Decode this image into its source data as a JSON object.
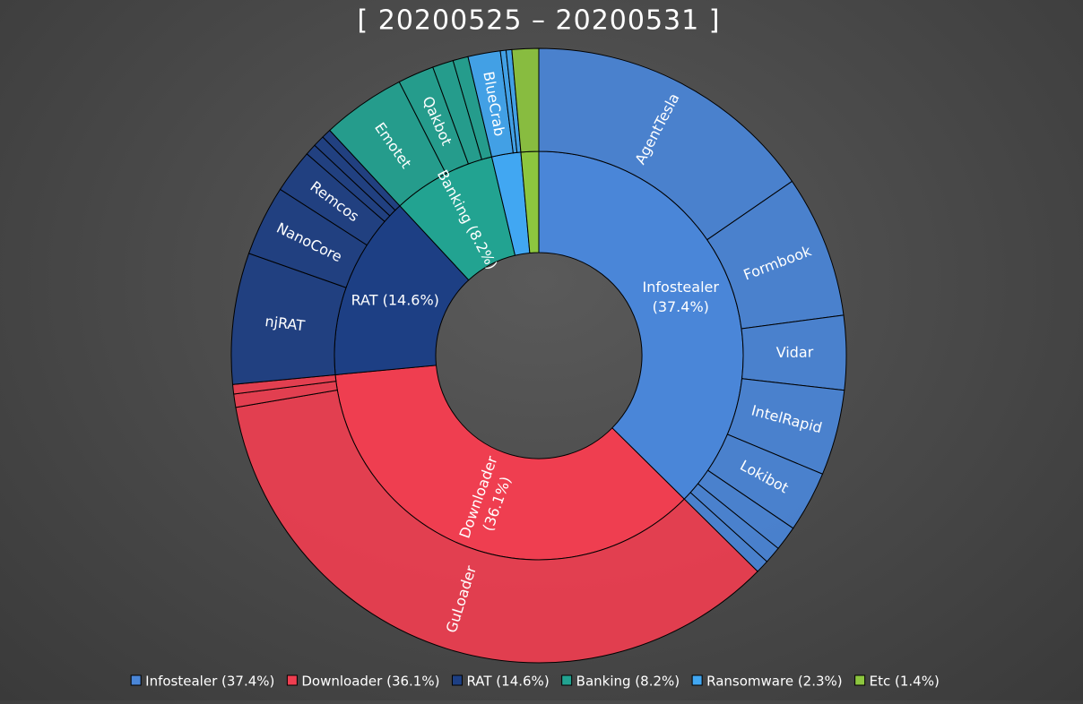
{
  "chart_data": {
    "type": "sunburst",
    "title": "[ 20200525 – 20200531 ]",
    "series": [
      {
        "label": "Infostealer (37.4%)",
        "value": 37.4,
        "color": "#4a86d8",
        "children": [
          {
            "label": "AgentTesla",
            "value": 15.4
          },
          {
            "label": "Formbook",
            "value": 7.5
          },
          {
            "label": "Vidar",
            "value": 3.9
          },
          {
            "label": "IntelRapid",
            "value": 4.5
          },
          {
            "label": "Lokibot",
            "value": 3.2
          },
          {
            "value": 1.3
          },
          {
            "value": 0.9
          },
          {
            "value": 0.7
          }
        ]
      },
      {
        "label": "Downloader (36.1%)",
        "value": 36.1,
        "color": "#ef3e50",
        "children": [
          {
            "label": "GuLoader",
            "value": 34.9
          },
          {
            "value": 0.7
          },
          {
            "value": 0.5
          }
        ]
      },
      {
        "label": "RAT (14.6%)",
        "value": 14.6,
        "color": "#1d3f84",
        "children": [
          {
            "label": "njRAT",
            "value": 6.9
          },
          {
            "label": "NanoCore",
            "value": 3.7
          },
          {
            "label": "Remcos",
            "value": 2.3
          },
          {
            "value": 0.6
          },
          {
            "value": 0.6
          },
          {
            "value": 0.5
          }
        ]
      },
      {
        "label": "Banking (8.2%)",
        "value": 8.2,
        "color": "#22a391",
        "children": [
          {
            "label": "Emotet",
            "value": 4.4
          },
          {
            "label": "Qakbot",
            "value": 1.9
          },
          {
            "value": 1.1
          },
          {
            "value": 0.8
          }
        ]
      },
      {
        "label": "Ransomware (2.3%)",
        "value": 2.3,
        "color": "#41a7f2",
        "children": [
          {
            "label": "BlueCrab",
            "value": 1.7
          },
          {
            "value": 0.3
          },
          {
            "value": 0.3
          }
        ]
      },
      {
        "label": "Etc (1.4%)",
        "value": 1.4,
        "color": "#8dc63f",
        "children": [
          {
            "value": 1.4
          }
        ]
      }
    ]
  }
}
